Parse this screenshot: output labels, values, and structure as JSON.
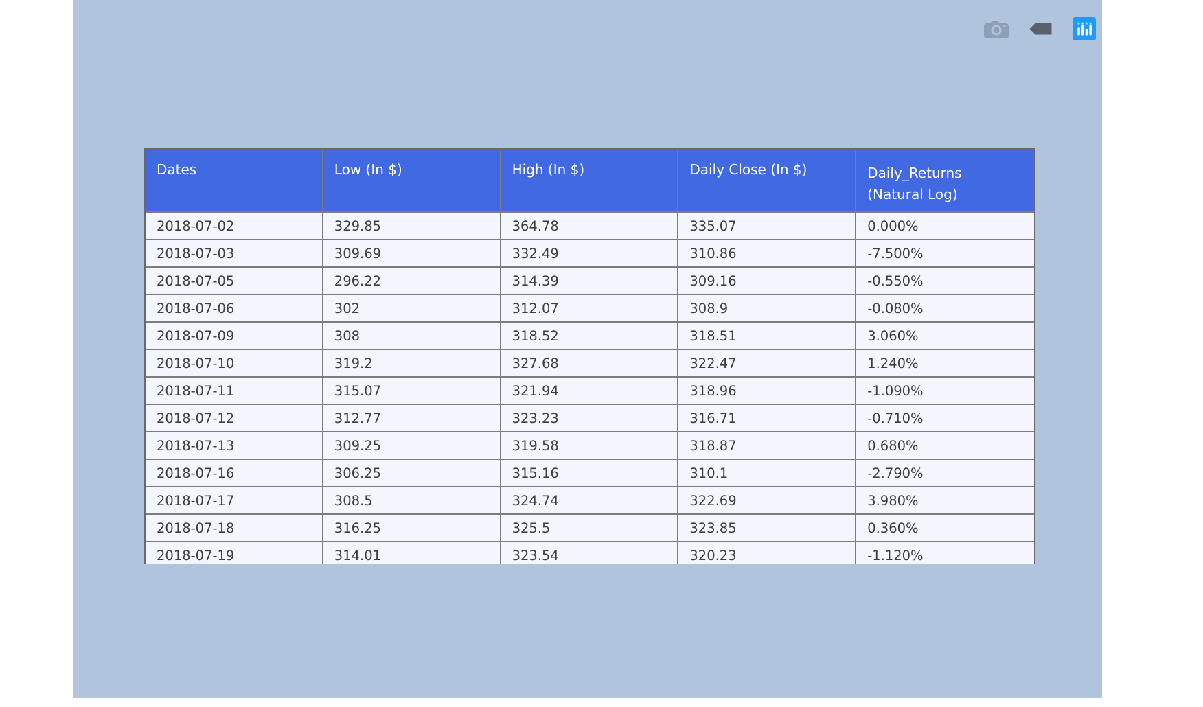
{
  "colors": {
    "paper_background": "#b0c4de",
    "header_fill": "#4169e1",
    "header_text": "#ffffff",
    "cell_fill": "#f3f6fd",
    "cell_text": "#3f3f3f",
    "grid_line": "#7d7d7d",
    "plotly_logo_blue": "#1f9bf7",
    "hover_icon_gray": "#58616c",
    "camera_icon_gray": "#8da0b5"
  },
  "modebar": {
    "icons": [
      "camera-icon",
      "hover-closest-icon",
      "plotly-logo-icon"
    ]
  },
  "chart_data": {
    "type": "table",
    "columns": [
      "Dates",
      "Low (In $)",
      "High (In $)",
      "Daily Close (In $)",
      "Daily_Returns\n(Natural Log)"
    ],
    "rows": [
      [
        "2018-07-02",
        "329.85",
        "364.78",
        "335.07",
        "0.000%"
      ],
      [
        "2018-07-03",
        "309.69",
        "332.49",
        "310.86",
        "-7.500%"
      ],
      [
        "2018-07-05",
        "296.22",
        "314.39",
        "309.16",
        "-0.550%"
      ],
      [
        "2018-07-06",
        "302",
        "312.07",
        "308.9",
        "-0.080%"
      ],
      [
        "2018-07-09",
        "308",
        "318.52",
        "318.51",
        "3.060%"
      ],
      [
        "2018-07-10",
        "319.2",
        "327.68",
        "322.47",
        "1.240%"
      ],
      [
        "2018-07-11",
        "315.07",
        "321.94",
        "318.96",
        "-1.090%"
      ],
      [
        "2018-07-12",
        "312.77",
        "323.23",
        "316.71",
        "-0.710%"
      ],
      [
        "2018-07-13",
        "309.25",
        "319.58",
        "318.87",
        "0.680%"
      ],
      [
        "2018-07-16",
        "306.25",
        "315.16",
        "310.1",
        "-2.790%"
      ],
      [
        "2018-07-17",
        "308.5",
        "324.74",
        "322.69",
        "3.980%"
      ],
      [
        "2018-07-18",
        "316.25",
        "325.5",
        "323.85",
        "0.360%"
      ],
      [
        "2018-07-19",
        "314.01",
        "323.54",
        "320.23",
        "-1.120%"
      ]
    ]
  }
}
